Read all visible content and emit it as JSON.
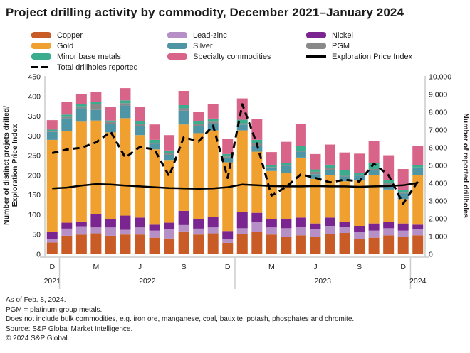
{
  "title": "Project drilling activity by commodity, December 2021–January 2024",
  "legend": {
    "col1": [
      {
        "key": "copper",
        "label": "Copper",
        "swatch": "fill"
      },
      {
        "key": "gold",
        "label": "Gold",
        "swatch": "fill"
      },
      {
        "key": "minor_base",
        "label": "Minor base metals",
        "swatch": "fill"
      },
      {
        "key": "drillholes",
        "label": "Total drillholes reported",
        "swatch": "dash"
      }
    ],
    "col2": [
      {
        "key": "lead_zinc",
        "label": "Lead-zinc",
        "swatch": "fill"
      },
      {
        "key": "silver",
        "label": "Silver",
        "swatch": "fill"
      },
      {
        "key": "specialty",
        "label": "Specialty commodities",
        "swatch": "fill"
      }
    ],
    "col3": [
      {
        "key": "nickel",
        "label": "Nickel",
        "swatch": "fill"
      },
      {
        "key": "pgm",
        "label": "PGM",
        "swatch": "fill"
      },
      {
        "key": "epi",
        "label": "Exploration Price Index",
        "swatch": "line"
      }
    ]
  },
  "colors": {
    "copper": "#C95B27",
    "gold": "#F0A02F",
    "minor_base": "#3BAD8E",
    "lead_zinc": "#B58FC5",
    "silver": "#4E96A6",
    "specialty": "#D8648A",
    "nickel": "#7B2690",
    "pgm": "#898989",
    "line_black": "#000000",
    "axis_gray": "#cccccc"
  },
  "chart_data": {
    "type": "bar",
    "stacked": true,
    "title": "Project drilling activity by commodity, December 2021–January 2024",
    "categories": [
      "Dec 2021",
      "Jan 2022",
      "Feb 2022",
      "Mar 2022",
      "Apr 2022",
      "May 2022",
      "Jun 2022",
      "Jul 2022",
      "Aug 2022",
      "Sep 2022",
      "Oct 2022",
      "Nov 2022",
      "Dec 2022",
      "Jan 2023",
      "Feb 2023",
      "Mar 2023",
      "Apr 2023",
      "May 2023",
      "Jun 2023",
      "Jul 2023",
      "Aug 2023",
      "Sep 2023",
      "Oct 2023",
      "Nov 2023",
      "Dec 2023",
      "Jan 2024"
    ],
    "stack_order": [
      "copper",
      "lead_zinc",
      "nickel",
      "gold",
      "silver",
      "pgm",
      "minor_base",
      "specialty"
    ],
    "series": [
      {
        "name": "Copper",
        "key": "copper",
        "values": [
          30,
          47,
          50,
          53,
          47,
          50,
          50,
          42,
          40,
          58,
          50,
          53,
          29,
          51,
          57,
          50,
          45,
          48,
          45,
          51,
          54,
          39,
          42,
          48,
          45,
          48
        ]
      },
      {
        "name": "Lead-zinc",
        "key": "lead_zinc",
        "values": [
          9,
          18,
          21,
          15,
          21,
          12,
          18,
          18,
          23,
          16,
          15,
          15,
          9,
          15,
          24,
          18,
          21,
          21,
          18,
          21,
          15,
          18,
          18,
          18,
          15,
          15
        ]
      },
      {
        "name": "Nickel",
        "key": "nickel",
        "values": [
          18,
          15,
          12,
          33,
          21,
          36,
          25,
          15,
          17,
          36,
          24,
          27,
          21,
          42,
          24,
          22,
          24,
          24,
          15,
          21,
          12,
          15,
          18,
          15,
          18,
          12
        ]
      },
      {
        "name": "Gold",
        "key": "gold",
        "values": [
          233,
          232,
          253,
          238,
          220,
          247,
          209,
          191,
          159,
          219,
          218,
          219,
          174,
          206,
          155,
          121,
          116,
          152,
          113,
          107,
          104,
          115,
          122,
          83,
          62,
          125
        ]
      },
      {
        "name": "Silver",
        "key": "silver",
        "values": [
          20,
          33,
          34,
          27,
          21,
          32,
          23,
          14,
          13,
          35,
          18,
          18,
          12,
          15,
          15,
          8,
          18,
          15,
          12,
          13,
          12,
          12,
          14,
          12,
          14,
          18
        ]
      },
      {
        "name": "PGM",
        "key": "pgm",
        "values": [
          2,
          3,
          5,
          15,
          5,
          6,
          6,
          2,
          5,
          6,
          5,
          4,
          3,
          3,
          6,
          2,
          2,
          2,
          6,
          5,
          2,
          2,
          2,
          5,
          2,
          2
        ]
      },
      {
        "name": "Minor base metals",
        "key": "minor_base",
        "values": [
          4,
          6,
          6,
          6,
          4,
          7,
          7,
          8,
          6,
          8,
          7,
          8,
          6,
          9,
          9,
          4,
          6,
          12,
          6,
          9,
          15,
          6,
          15,
          7,
          6,
          6
        ]
      },
      {
        "name": "Specialty commodities",
        "key": "specialty",
        "values": [
          24,
          33,
          24,
          24,
          34,
          31,
          36,
          39,
          39,
          36,
          24,
          36,
          39,
          54,
          52,
          34,
          53,
          57,
          39,
          51,
          44,
          48,
          57,
          63,
          54,
          49
        ]
      }
    ],
    "line_series": [
      {
        "name": "Total drillholes reported",
        "key": "drillholes",
        "axis": "right",
        "style": "dashed",
        "values": [
          5700,
          5900,
          6000,
          6300,
          6900,
          5450,
          6050,
          5900,
          4400,
          6600,
          6350,
          7250,
          4300,
          8450,
          6200,
          3300,
          3800,
          4500,
          4300,
          4050,
          4200,
          4100,
          5100,
          4450,
          2850,
          4100
        ]
      },
      {
        "name": "Exploration Price Index",
        "key": "epi",
        "axis": "left",
        "style": "solid",
        "values": [
          167,
          169,
          174,
          178,
          177,
          174,
          172,
          170,
          168,
          167,
          166,
          167,
          170,
          177,
          175,
          173,
          172,
          172,
          173,
          172,
          172,
          171,
          172,
          173,
          175,
          181
        ]
      }
    ],
    "left_axis": {
      "label_line1": "Number of distinct projets drilled/",
      "label_line2": "Exploration Price Index",
      "min": 0,
      "max": 450,
      "step": 50
    },
    "right_axis": {
      "label": "Number of reported drillholes",
      "min": 0,
      "max": 10000,
      "step": 1000
    },
    "x_axis": {
      "month_ticks": [
        [
          0,
          "D"
        ],
        [
          3,
          "M"
        ],
        [
          6,
          "J"
        ],
        [
          9,
          "S"
        ],
        [
          12,
          "D"
        ],
        [
          15,
          "M"
        ],
        [
          18,
          "J"
        ],
        [
          21,
          "S"
        ],
        [
          24,
          "D"
        ]
      ],
      "year_groups": [
        {
          "label": "2021",
          "from": 0,
          "to": 1
        },
        {
          "label": "2022",
          "from": 1,
          "to": 13
        },
        {
          "label": "2023",
          "from": 13,
          "to": 25
        },
        {
          "label": "2024",
          "from": 25,
          "to": 26
        }
      ]
    },
    "legend_position": "top",
    "grid": false
  },
  "footer": {
    "lines": [
      "As of Feb. 8, 2024.",
      "PGM = platinum group metals.",
      "Does not include bulk commodities, e.g. iron ore, manganese, coal, bauxite, potash, phosphates and chromite.",
      "Source: S&P Global Market Intelligence.",
      "© 2024 S&P Global."
    ]
  }
}
